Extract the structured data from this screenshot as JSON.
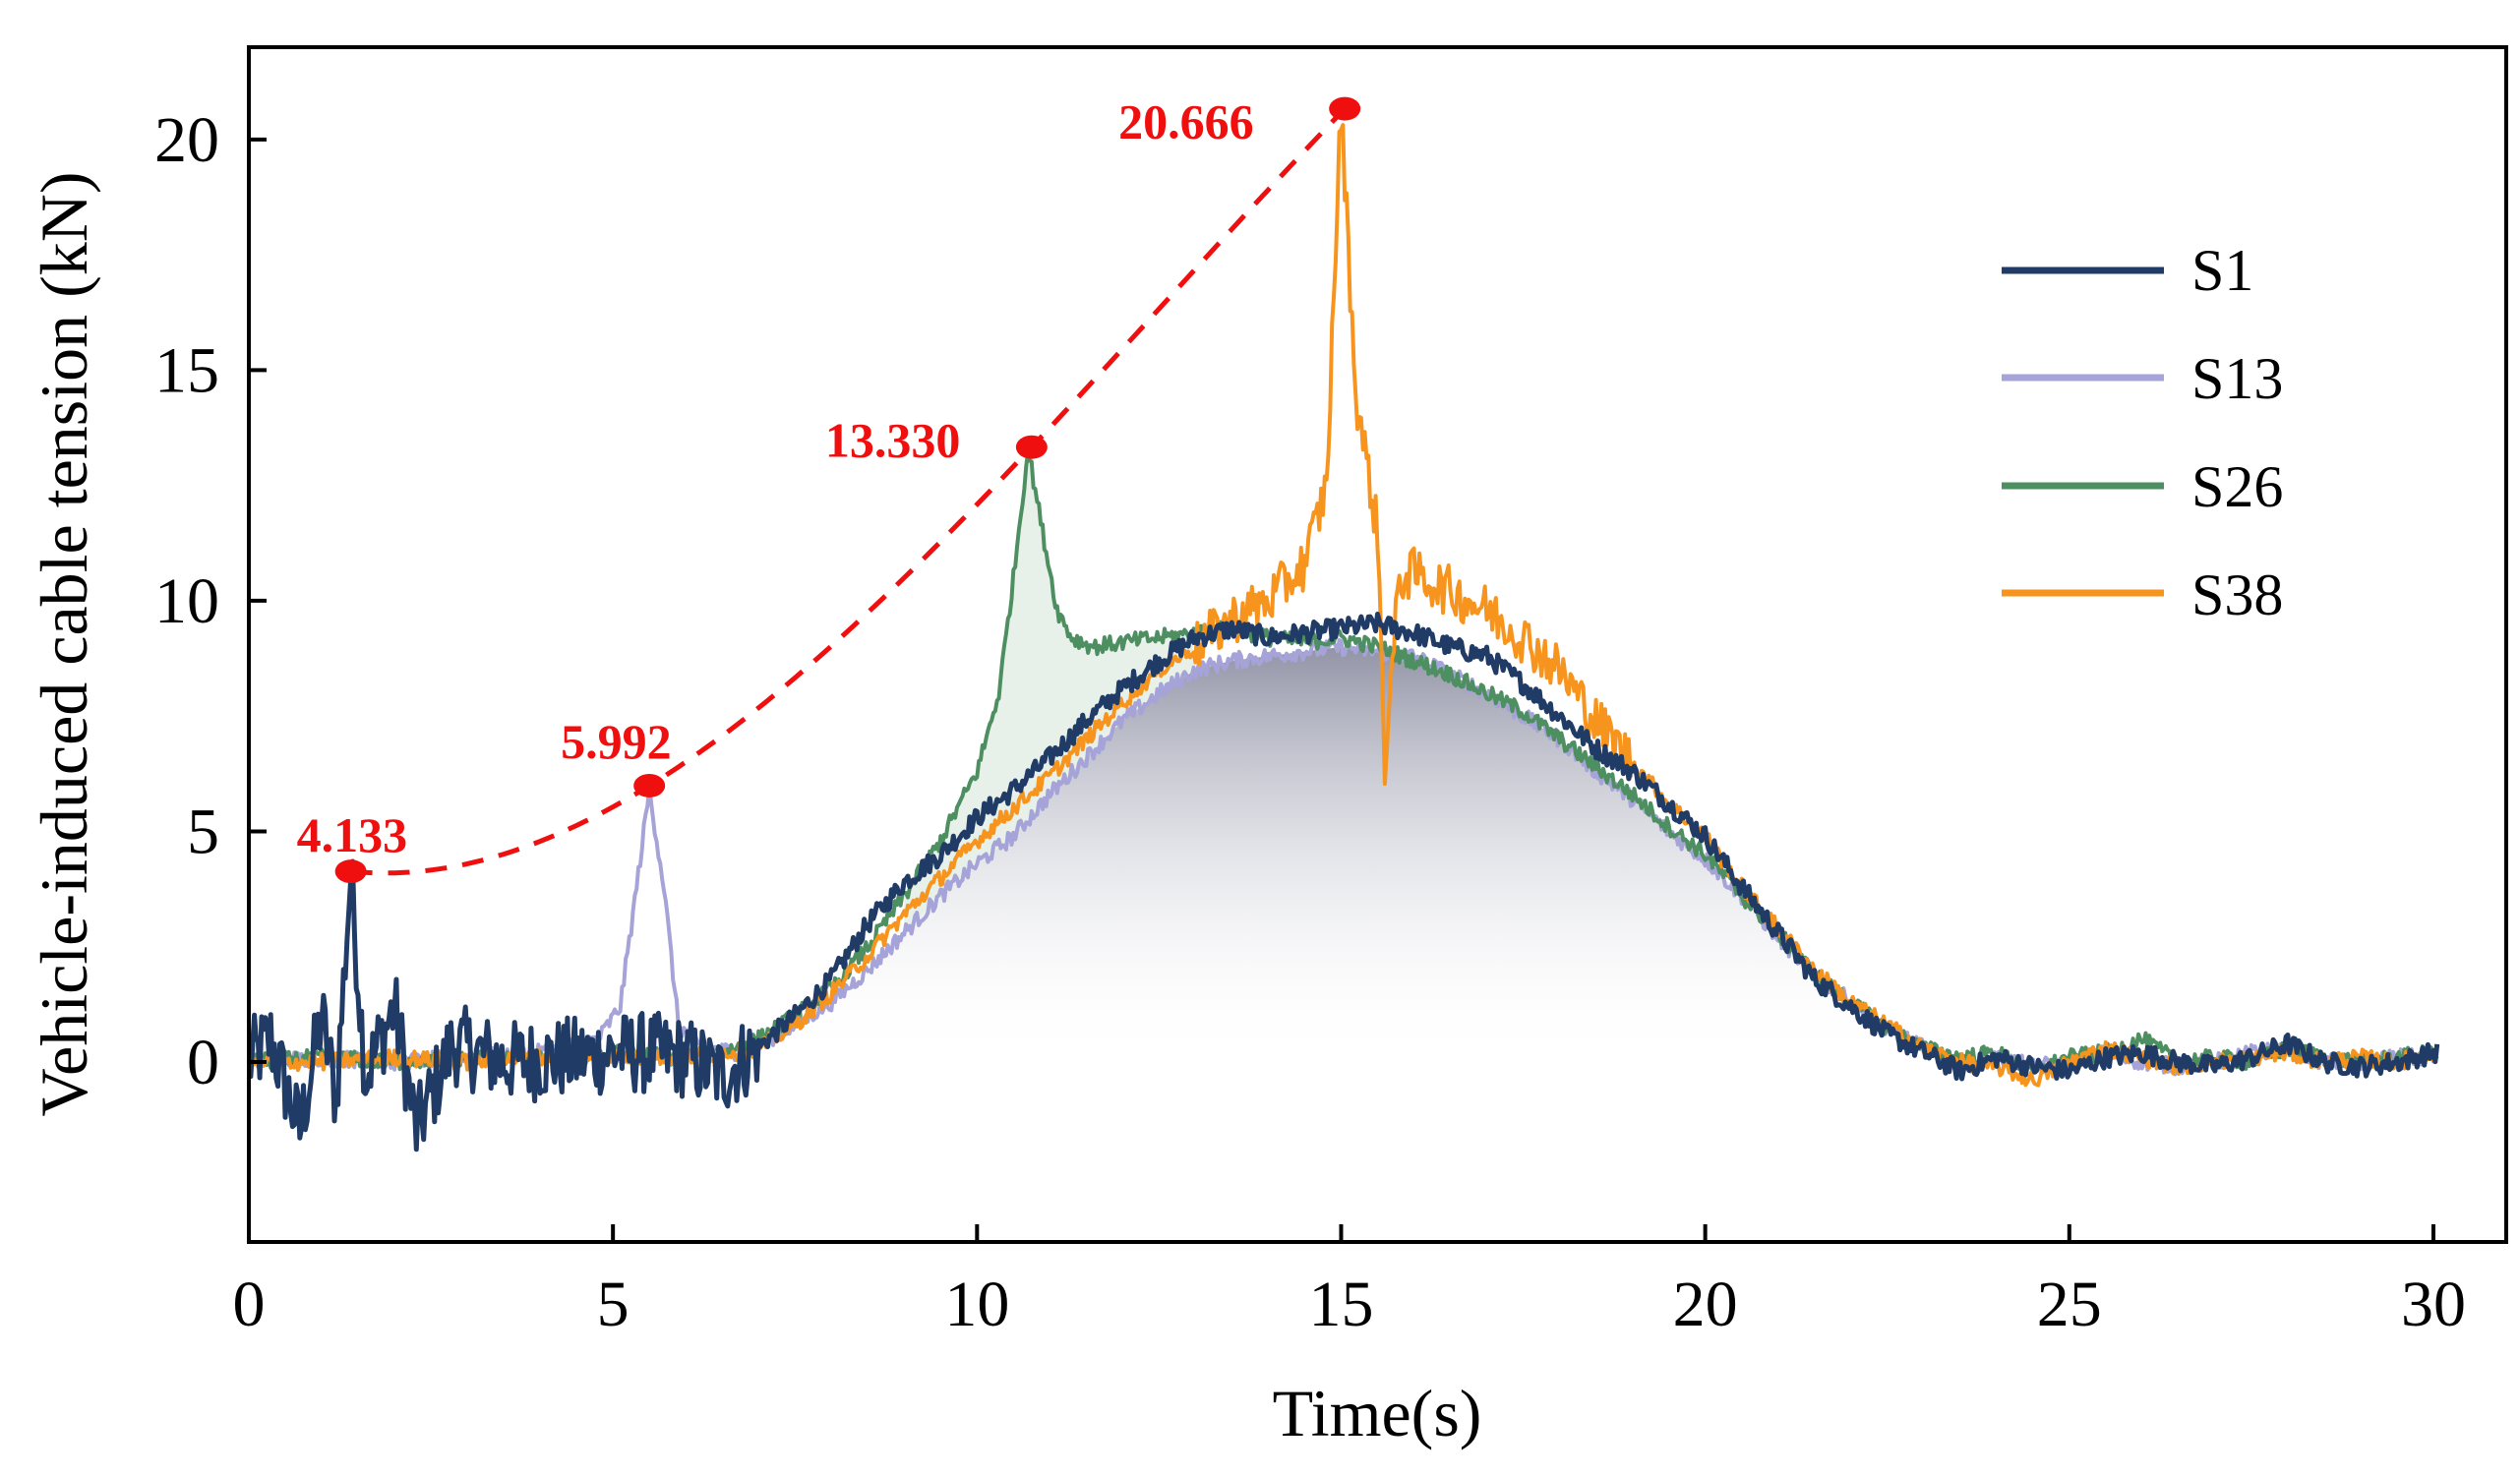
{
  "chart_data": {
    "type": "line",
    "title": "",
    "xlabel": "Time(s)",
    "ylabel": "Vehicle-induced cable tension (kN)",
    "xlim": [
      0,
      31
    ],
    "ylim": [
      -3.9,
      22
    ],
    "x_ticks": [
      0,
      5,
      10,
      15,
      20,
      25,
      30
    ],
    "y_ticks": [
      0,
      5,
      10,
      15,
      20
    ],
    "tick_labels_x": [
      "0",
      "5",
      "10",
      "15",
      "20",
      "25",
      "30"
    ],
    "tick_labels_y": [
      "0",
      "5",
      "10",
      "15",
      "20"
    ],
    "grid": false,
    "legend_position": "top-right",
    "legend": [
      "S1",
      "S13",
      "S26",
      "S38"
    ],
    "series": [
      {
        "name": "S1",
        "color": "#1f3b66",
        "noise": "high-before-7s",
        "points": [
          [
            0,
            0.0
          ],
          [
            0.3,
            0.5
          ],
          [
            0.7,
            -1.5
          ],
          [
            1.0,
            1.0
          ],
          [
            1.2,
            -0.8
          ],
          [
            1.4,
            4.1
          ],
          [
            1.6,
            -0.3
          ],
          [
            2.0,
            1.2
          ],
          [
            2.3,
            -1.5
          ],
          [
            2.8,
            0.4
          ],
          [
            3.5,
            0.0
          ],
          [
            4.5,
            0.1
          ],
          [
            5.0,
            0.2
          ],
          [
            5.5,
            0.2
          ],
          [
            6.0,
            0.1
          ],
          [
            6.5,
            -0.3
          ],
          [
            6.9,
            0.2
          ],
          [
            7.5,
            1.0
          ],
          [
            8.0,
            1.8
          ],
          [
            8.5,
            3.0
          ],
          [
            9.0,
            3.9
          ],
          [
            9.5,
            4.5
          ],
          [
            10.0,
            5.3
          ],
          [
            10.5,
            5.9
          ],
          [
            11.0,
            6.6
          ],
          [
            11.5,
            7.4
          ],
          [
            12.0,
            8.1
          ],
          [
            12.5,
            8.7
          ],
          [
            13.0,
            9.2
          ],
          [
            13.5,
            9.4
          ],
          [
            14.0,
            9.2
          ],
          [
            14.5,
            9.3
          ],
          [
            15.0,
            9.4
          ],
          [
            15.5,
            9.5
          ],
          [
            16.0,
            9.3
          ],
          [
            16.5,
            9.0
          ],
          [
            17.0,
            8.8
          ],
          [
            17.5,
            8.2
          ],
          [
            18.0,
            7.5
          ],
          [
            18.5,
            6.8
          ],
          [
            19.0,
            6.3
          ],
          [
            19.5,
            5.6
          ],
          [
            20.0,
            4.9
          ],
          [
            20.5,
            3.8
          ],
          [
            21.0,
            2.8
          ],
          [
            21.5,
            1.8
          ],
          [
            22.0,
            1.2
          ],
          [
            22.5,
            0.6
          ],
          [
            23.0,
            0.2
          ],
          [
            23.5,
            -0.2
          ],
          [
            24.0,
            0.1
          ],
          [
            24.5,
            -0.1
          ],
          [
            25.0,
            -0.2
          ],
          [
            25.5,
            0.1
          ],
          [
            26.0,
            0.2
          ],
          [
            26.5,
            0.0
          ],
          [
            27.0,
            -0.1
          ],
          [
            27.5,
            0.1
          ],
          [
            28.0,
            0.4
          ],
          [
            28.5,
            0.0
          ],
          [
            29.0,
            -0.1
          ],
          [
            29.5,
            0.0
          ],
          [
            30.0,
            0.2
          ]
        ]
      },
      {
        "name": "S13",
        "color": "#a5a3d8",
        "noise": "low",
        "points": [
          [
            0,
            0.0
          ],
          [
            1.0,
            0.1
          ],
          [
            2.0,
            0.0
          ],
          [
            3.0,
            0.1
          ],
          [
            4.0,
            0.2
          ],
          [
            4.8,
            0.5
          ],
          [
            5.1,
            1.2
          ],
          [
            5.3,
            3.5
          ],
          [
            5.5,
            5.9
          ],
          [
            5.7,
            3.8
          ],
          [
            5.9,
            0.8
          ],
          [
            6.2,
            0.3
          ],
          [
            6.8,
            0.2
          ],
          [
            7.5,
            0.8
          ],
          [
            8.0,
            1.3
          ],
          [
            8.5,
            2.0
          ],
          [
            9.0,
            2.8
          ],
          [
            9.5,
            3.6
          ],
          [
            10.0,
            4.3
          ],
          [
            10.5,
            4.9
          ],
          [
            11.0,
            5.8
          ],
          [
            11.5,
            6.6
          ],
          [
            12.0,
            7.4
          ],
          [
            12.5,
            8.0
          ],
          [
            13.0,
            8.5
          ],
          [
            13.5,
            8.7
          ],
          [
            14.0,
            8.8
          ],
          [
            14.5,
            8.9
          ],
          [
            15.0,
            9.0
          ],
          [
            15.5,
            8.9
          ],
          [
            16.0,
            8.8
          ],
          [
            16.5,
            8.4
          ],
          [
            17.0,
            8.0
          ],
          [
            17.5,
            7.5
          ],
          [
            18.0,
            7.0
          ],
          [
            18.5,
            6.3
          ],
          [
            19.0,
            5.7
          ],
          [
            19.5,
            5.0
          ],
          [
            20.0,
            4.4
          ],
          [
            20.5,
            3.6
          ],
          [
            21.0,
            2.7
          ],
          [
            21.5,
            1.9
          ],
          [
            22.0,
            1.3
          ],
          [
            22.5,
            0.7
          ],
          [
            23.0,
            0.3
          ],
          [
            23.5,
            0.0
          ],
          [
            24.0,
            0.1
          ],
          [
            24.5,
            -0.1
          ],
          [
            25.0,
            0.0
          ],
          [
            25.5,
            0.2
          ],
          [
            26.0,
            0.0
          ],
          [
            26.5,
            -0.1
          ],
          [
            27.0,
            0.0
          ],
          [
            27.5,
            0.2
          ],
          [
            28.0,
            0.3
          ],
          [
            28.5,
            0.0
          ],
          [
            29.0,
            0.0
          ],
          [
            29.5,
            0.1
          ],
          [
            30.0,
            0.1
          ]
        ]
      },
      {
        "name": "S26",
        "color": "#4e8f62",
        "noise": "low",
        "points": [
          [
            0,
            0.0
          ],
          [
            1.0,
            0.1
          ],
          [
            2.0,
            0.0
          ],
          [
            3.0,
            0.1
          ],
          [
            4.0,
            0.1
          ],
          [
            5.0,
            0.2
          ],
          [
            6.0,
            0.1
          ],
          [
            6.5,
            0.2
          ],
          [
            7.0,
            0.5
          ],
          [
            7.5,
            1.0
          ],
          [
            8.0,
            1.6
          ],
          [
            8.5,
            2.5
          ],
          [
            9.0,
            3.6
          ],
          [
            9.5,
            4.8
          ],
          [
            10.0,
            6.3
          ],
          [
            10.3,
            8.0
          ],
          [
            10.5,
            10.5
          ],
          [
            10.7,
            13.3
          ],
          [
            10.9,
            11.5
          ],
          [
            11.1,
            9.8
          ],
          [
            11.3,
            9.2
          ],
          [
            11.6,
            9.0
          ],
          [
            12.0,
            9.1
          ],
          [
            12.5,
            9.2
          ],
          [
            13.0,
            9.3
          ],
          [
            13.5,
            9.4
          ],
          [
            14.0,
            9.2
          ],
          [
            14.5,
            9.1
          ],
          [
            15.0,
            9.2
          ],
          [
            15.5,
            9.0
          ],
          [
            16.0,
            8.7
          ],
          [
            16.5,
            8.4
          ],
          [
            17.0,
            8.0
          ],
          [
            17.5,
            7.6
          ],
          [
            18.0,
            7.0
          ],
          [
            18.5,
            6.4
          ],
          [
            19.0,
            5.8
          ],
          [
            19.5,
            5.1
          ],
          [
            20.0,
            4.5
          ],
          [
            20.5,
            3.6
          ],
          [
            21.0,
            2.8
          ],
          [
            21.5,
            1.9
          ],
          [
            22.0,
            1.3
          ],
          [
            22.5,
            0.7
          ],
          [
            23.0,
            0.3
          ],
          [
            23.5,
            0.1
          ],
          [
            24.0,
            0.2
          ],
          [
            24.5,
            -0.2
          ],
          [
            25.0,
            0.1
          ],
          [
            25.5,
            0.2
          ],
          [
            26.0,
            0.5
          ],
          [
            26.5,
            0.0
          ],
          [
            27.0,
            0.1
          ],
          [
            27.5,
            0.0
          ],
          [
            28.0,
            0.3
          ],
          [
            28.5,
            0.1
          ],
          [
            29.0,
            0.0
          ],
          [
            29.5,
            0.1
          ],
          [
            30.0,
            0.2
          ]
        ]
      },
      {
        "name": "S38",
        "color": "#f7941d",
        "noise": "high-after-13s",
        "points": [
          [
            0,
            0.0
          ],
          [
            1.0,
            0.0
          ],
          [
            2.0,
            0.1
          ],
          [
            3.0,
            0.0
          ],
          [
            4.0,
            0.1
          ],
          [
            5.0,
            0.1
          ],
          [
            6.0,
            0.1
          ],
          [
            7.0,
            0.3
          ],
          [
            7.5,
            0.8
          ],
          [
            8.0,
            1.5
          ],
          [
            8.5,
            2.3
          ],
          [
            9.0,
            3.2
          ],
          [
            9.5,
            4.0
          ],
          [
            10.0,
            4.8
          ],
          [
            10.5,
            5.5
          ],
          [
            11.0,
            6.2
          ],
          [
            11.5,
            7.0
          ],
          [
            12.0,
            7.8
          ],
          [
            12.5,
            8.5
          ],
          [
            13.0,
            9.0
          ],
          [
            13.5,
            9.6
          ],
          [
            14.0,
            10.0
          ],
          [
            14.5,
            10.8
          ],
          [
            14.8,
            12.5
          ],
          [
            15.0,
            20.7
          ],
          [
            15.2,
            14.5
          ],
          [
            15.5,
            11.5
          ],
          [
            15.6,
            6.5
          ],
          [
            15.8,
            10.5
          ],
          [
            16.0,
            10.6
          ],
          [
            16.5,
            10.2
          ],
          [
            17.0,
            9.8
          ],
          [
            17.5,
            9.2
          ],
          [
            18.0,
            8.5
          ],
          [
            18.5,
            7.4
          ],
          [
            19.0,
            6.5
          ],
          [
            19.5,
            5.6
          ],
          [
            20.0,
            4.9
          ],
          [
            20.5,
            3.8
          ],
          [
            21.0,
            2.9
          ],
          [
            21.5,
            2.0
          ],
          [
            22.0,
            1.3
          ],
          [
            22.5,
            0.8
          ],
          [
            23.0,
            0.3
          ],
          [
            23.5,
            0.0
          ],
          [
            24.0,
            -0.1
          ],
          [
            24.5,
            -0.4
          ],
          [
            25.0,
            0.0
          ],
          [
            25.5,
            0.3
          ],
          [
            26.0,
            0.1
          ],
          [
            26.5,
            -0.1
          ],
          [
            27.0,
            0.0
          ],
          [
            27.5,
            0.1
          ],
          [
            28.0,
            0.2
          ],
          [
            28.5,
            0.0
          ],
          [
            29.0,
            0.1
          ],
          [
            29.5,
            0.0
          ],
          [
            30.0,
            0.2
          ]
        ]
      }
    ],
    "peak_markers": [
      {
        "x": 1.4,
        "y": 4.133,
        "label": "4.133"
      },
      {
        "x": 5.5,
        "y": 5.992,
        "label": "5.992"
      },
      {
        "x": 10.75,
        "y": 13.33,
        "label": "13.330"
      },
      {
        "x": 15.05,
        "y": 20.666,
        "label": "20.666"
      }
    ],
    "peak_trend": {
      "type": "dashed-curve",
      "color": "#f00f0f"
    },
    "fill_under": {
      "color": "#8a8ca3",
      "description_series": "envelope"
    }
  }
}
